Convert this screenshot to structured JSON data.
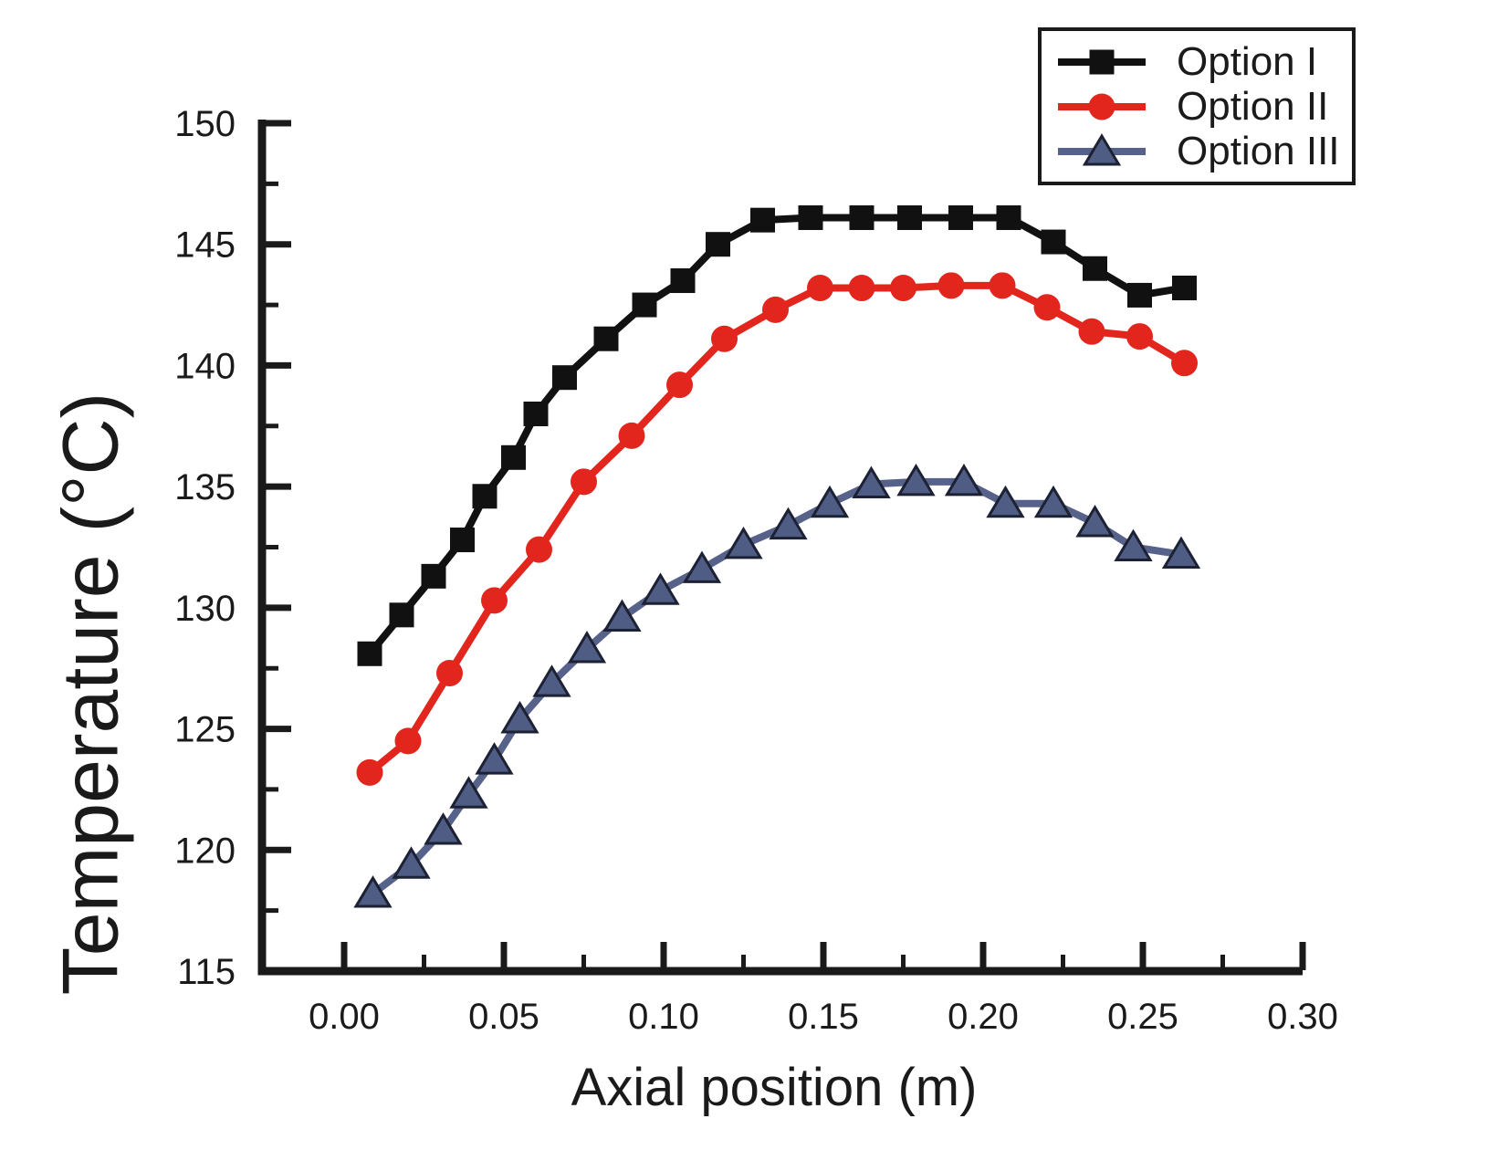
{
  "chart_data": {
    "type": "line",
    "title": "",
    "xlabel": "Axial position (m)",
    "ylabel": "Temperature (°C)",
    "xlim": [
      -0.026,
      0.3
    ],
    "ylim": [
      115,
      150
    ],
    "grid": false,
    "legend_position": "top-right",
    "axes": {
      "axis_color": "#1a1a1a",
      "x_ticks_major": {
        "values": [
          0.0,
          0.05,
          0.1,
          0.15,
          0.2,
          0.25,
          0.3
        ],
        "labels": [
          "0.00",
          "0.05",
          "0.10",
          "0.15",
          "0.20",
          "0.25",
          "0.30"
        ]
      },
      "x_ticks_minor": [
        0.025,
        0.075,
        0.125,
        0.175,
        0.225,
        0.275
      ],
      "y_ticks_major": {
        "values": [
          115,
          120,
          125,
          130,
          135,
          140,
          145,
          150
        ],
        "labels": [
          "115",
          "120",
          "125",
          "130",
          "135",
          "140",
          "145",
          "150"
        ]
      },
      "y_ticks_minor": [
        117.5,
        122.5,
        127.5,
        132.5,
        137.5,
        142.5,
        147.5
      ]
    },
    "series": [
      {
        "name": "Option I",
        "color": "#111111",
        "marker": "square",
        "points": [
          [
            0.008,
            128.1
          ],
          [
            0.018,
            129.7
          ],
          [
            0.028,
            131.3
          ],
          [
            0.037,
            132.8
          ],
          [
            0.044,
            134.6
          ],
          [
            0.053,
            136.2
          ],
          [
            0.06,
            138.0
          ],
          [
            0.069,
            139.5
          ],
          [
            0.082,
            141.1
          ],
          [
            0.094,
            142.5
          ],
          [
            0.106,
            143.5
          ],
          [
            0.117,
            145.0
          ],
          [
            0.131,
            146.0
          ],
          [
            0.146,
            146.1
          ],
          [
            0.162,
            146.1
          ],
          [
            0.177,
            146.1
          ],
          [
            0.193,
            146.1
          ],
          [
            0.208,
            146.1
          ],
          [
            0.222,
            145.1
          ],
          [
            0.235,
            144.0
          ],
          [
            0.249,
            142.9
          ],
          [
            0.263,
            143.2
          ]
        ]
      },
      {
        "name": "Option II",
        "color": "#e2261d",
        "marker": "circle",
        "points": [
          [
            0.008,
            123.2
          ],
          [
            0.02,
            124.5
          ],
          [
            0.033,
            127.3
          ],
          [
            0.047,
            130.3
          ],
          [
            0.061,
            132.4
          ],
          [
            0.075,
            135.2
          ],
          [
            0.09,
            137.1
          ],
          [
            0.105,
            139.2
          ],
          [
            0.119,
            141.1
          ],
          [
            0.135,
            142.3
          ],
          [
            0.149,
            143.2
          ],
          [
            0.162,
            143.2
          ],
          [
            0.175,
            143.2
          ],
          [
            0.19,
            143.3
          ],
          [
            0.206,
            143.3
          ],
          [
            0.22,
            142.4
          ],
          [
            0.234,
            141.4
          ],
          [
            0.249,
            141.2
          ],
          [
            0.263,
            140.1
          ]
        ]
      },
      {
        "name": "Option III",
        "color": "#566289",
        "marker": "triangle",
        "marker_fill": "#4f5c84",
        "marker_stroke": "#1c2133",
        "points": [
          [
            0.009,
            118.2
          ],
          [
            0.021,
            119.4
          ],
          [
            0.031,
            120.8
          ],
          [
            0.039,
            122.3
          ],
          [
            0.047,
            123.7
          ],
          [
            0.055,
            125.4
          ],
          [
            0.065,
            126.9
          ],
          [
            0.076,
            128.3
          ],
          [
            0.087,
            129.6
          ],
          [
            0.099,
            130.7
          ],
          [
            0.112,
            131.6
          ],
          [
            0.125,
            132.6
          ],
          [
            0.139,
            133.4
          ],
          [
            0.152,
            134.3
          ],
          [
            0.165,
            135.1
          ],
          [
            0.179,
            135.2
          ],
          [
            0.194,
            135.2
          ],
          [
            0.207,
            134.3
          ],
          [
            0.222,
            134.3
          ],
          [
            0.235,
            133.5
          ],
          [
            0.247,
            132.5
          ],
          [
            0.262,
            132.2
          ]
        ]
      }
    ]
  }
}
